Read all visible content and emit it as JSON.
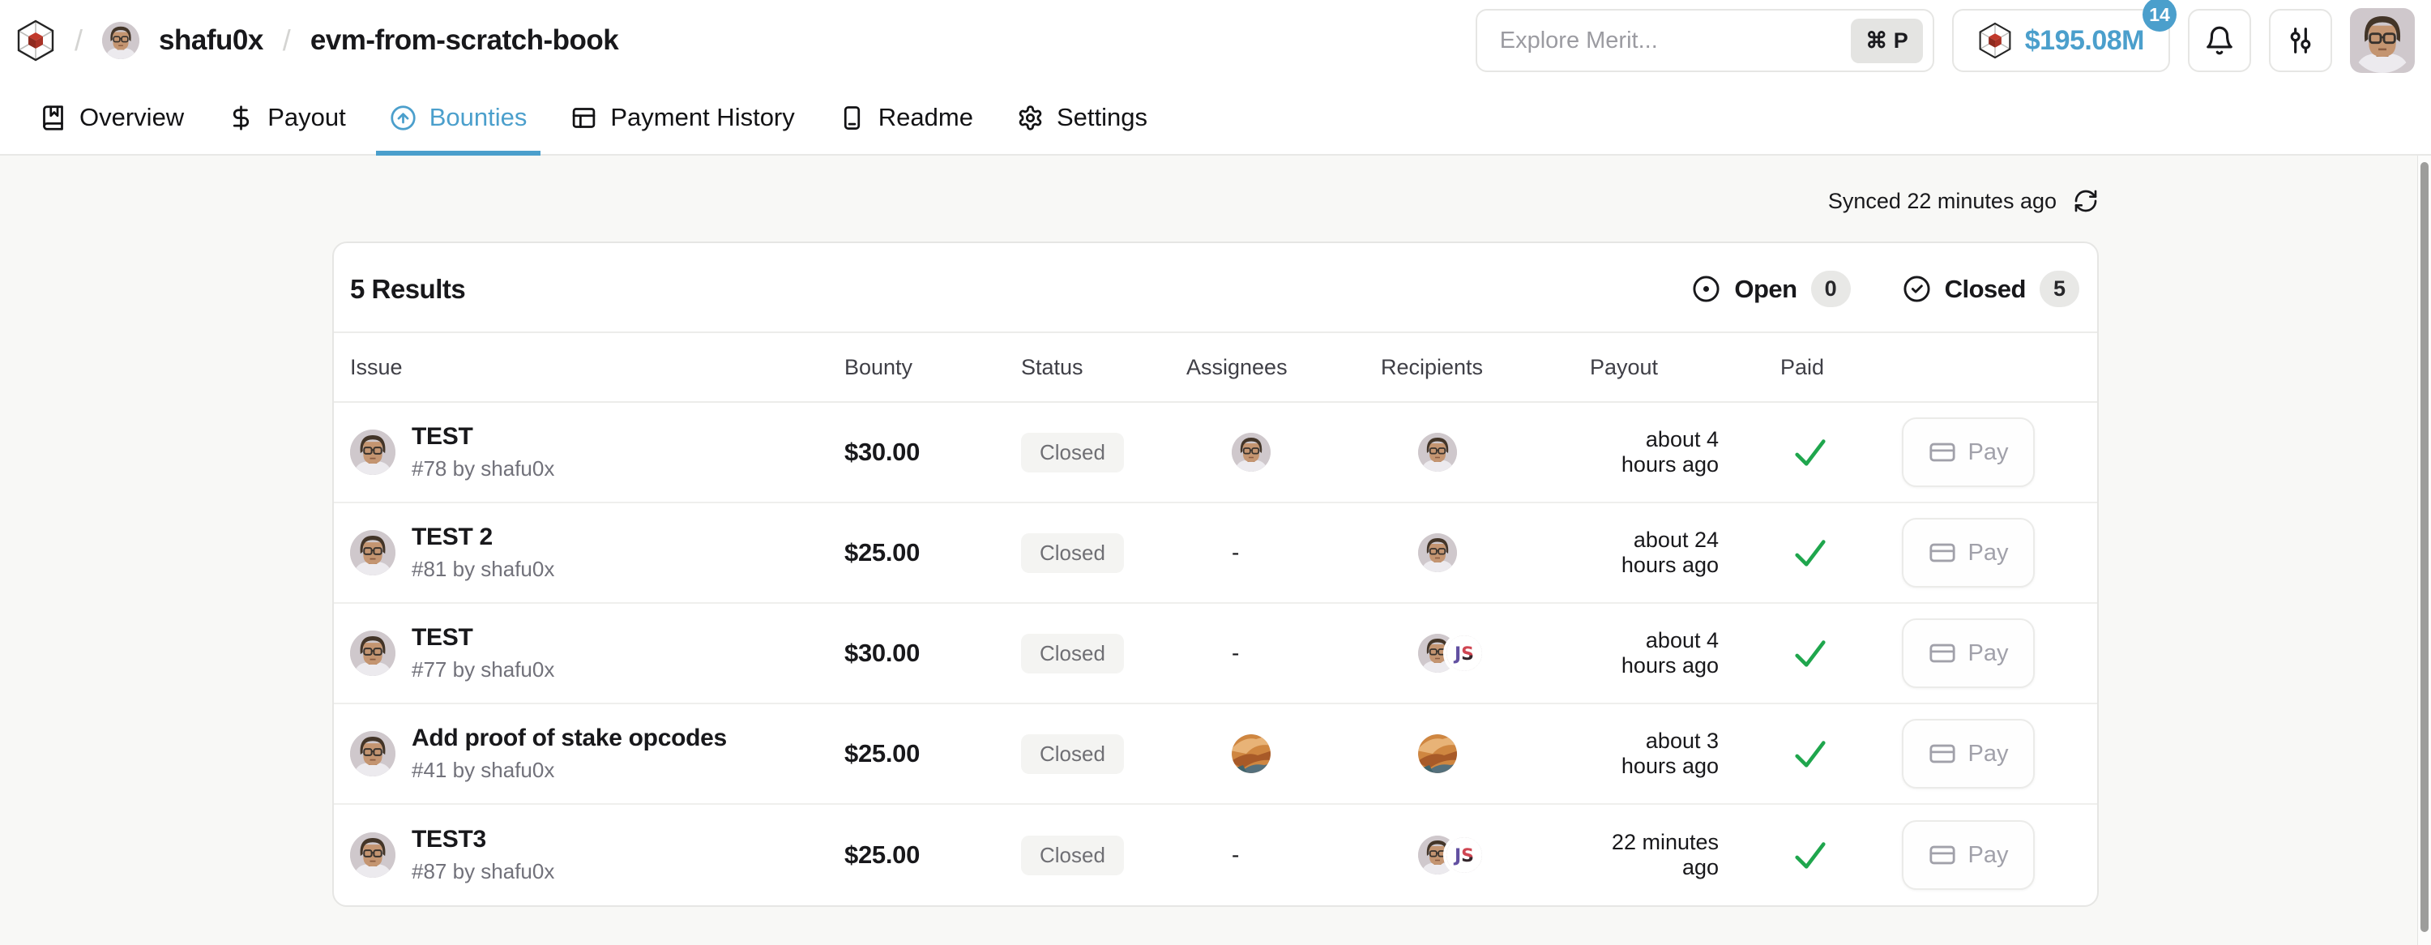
{
  "colors": {
    "accent_blue": "#4B9FCC",
    "paid_green": "#1FA64D",
    "gem_red": "#B03527"
  },
  "header": {
    "breadcrumb": {
      "sep": "/",
      "owner": "shafu0x",
      "repo": "evm-from-scratch-book",
      "logo_icon": "merit-gem-icon",
      "owner_avatar": "shafu0x"
    },
    "search": {
      "placeholder": "Explore Merit...",
      "shortcut": "⌘ P"
    },
    "balance": {
      "amount": "$195.08M",
      "badge": "14",
      "icon": "merit-gem-icon"
    },
    "icons": {
      "notifications": "bell-icon",
      "preferences": "sliders-icon",
      "profile": "user-avatar"
    }
  },
  "tabs": [
    {
      "label": "Overview",
      "icon": "book-marked-icon",
      "active": false
    },
    {
      "label": "Payout",
      "icon": "dollar-icon",
      "active": false
    },
    {
      "label": "Bounties",
      "icon": "circle-arrow-up-icon",
      "active": true
    },
    {
      "label": "Payment History",
      "icon": "table-icon",
      "active": false
    },
    {
      "label": "Readme",
      "icon": "book-icon",
      "active": false
    },
    {
      "label": "Settings",
      "icon": "gear-icon",
      "active": false
    }
  ],
  "sync": {
    "text": "Synced 22 minutes ago",
    "icon": "refresh-icon"
  },
  "panel": {
    "results": "5 Results",
    "filters": [
      {
        "label": "Open",
        "count": "0",
        "icon": "circle-dot-icon"
      },
      {
        "label": "Closed",
        "count": "5",
        "icon": "circle-check-icon"
      }
    ],
    "columns": [
      "Issue",
      "Bounty",
      "Status",
      "Assignees",
      "Recipients",
      "Payout",
      "Paid"
    ],
    "empty_placeholder": "-",
    "pay_label": "Pay",
    "rows": [
      {
        "title": "TEST",
        "meta": "#78 by shafu0x",
        "issue_avatar": "shafu0x",
        "bounty": "$30.00",
        "status": "Closed",
        "assignees": [
          "shafu0x"
        ],
        "recipients": [
          "shafu0x"
        ],
        "payout": "about 4 hours ago",
        "paid": true
      },
      {
        "title": "TEST 2",
        "meta": "#81 by shafu0x",
        "issue_avatar": "shafu0x",
        "bounty": "$25.00",
        "status": "Closed",
        "assignees": [],
        "recipients": [
          "shafu0x"
        ],
        "payout": "about 24 hours ago",
        "paid": true
      },
      {
        "title": "TEST",
        "meta": "#77 by shafu0x",
        "issue_avatar": "shafu0x",
        "bounty": "$30.00",
        "status": "Closed",
        "assignees": [],
        "recipients": [
          "shafu0x",
          "js"
        ],
        "payout": "about 4 hours ago",
        "paid": true
      },
      {
        "title": "Add proof of stake opcodes",
        "meta": "#41 by shafu0x",
        "issue_avatar": "shafu0x",
        "bounty": "$25.00",
        "status": "Closed",
        "assignees": [
          "abstract"
        ],
        "recipients": [
          "abstract"
        ],
        "payout": "about 3 hours ago",
        "paid": true
      },
      {
        "title": "TEST3",
        "meta": "#87 by shafu0x",
        "issue_avatar": "shafu0x",
        "bounty": "$25.00",
        "status": "Closed",
        "assignees": [],
        "recipients": [
          "shafu0x",
          "js"
        ],
        "payout": "22 minutes ago",
        "paid": true
      }
    ]
  }
}
